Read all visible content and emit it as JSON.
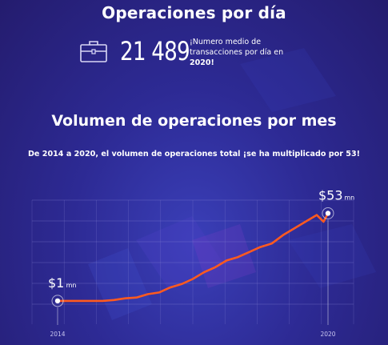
{
  "header": {
    "title": "Operaciones por día",
    "stat_value": "21 489",
    "stat_desc_line1": "¡Numero medio de",
    "stat_desc_line2": "transacciones por día en",
    "stat_desc_year": "2020!"
  },
  "section": {
    "subtitle": "Volumen de operaciones por mes",
    "caption": "De 2014 a 2020, el volumen de operaciones total ¡se ha multiplicado por 53!"
  },
  "icons": {
    "stat_icon": "briefcase-icon"
  },
  "colors": {
    "line": "#ff5a1f",
    "accent_bg": "#2d2a94",
    "text": "#ffffff"
  },
  "chart_data": {
    "type": "line",
    "title": "Volumen de operaciones por mes",
    "x_tick_labels": [
      "2014",
      "2020"
    ],
    "ylim": [
      0,
      60
    ],
    "grid": true,
    "start_marker": {
      "x": 2014.0,
      "value": 1,
      "label_value": "$1",
      "label_unit": "mn"
    },
    "end_marker": {
      "x": 2020.0,
      "value": 53,
      "label_value": "$53",
      "label_unit": "mn"
    },
    "series": [
      {
        "x": [
          2014.0,
          2014.25,
          2014.5,
          2014.75,
          2015.0,
          2015.25,
          2015.5,
          2015.75,
          2016.0,
          2016.25,
          2016.5,
          2016.75,
          2017.0,
          2017.25,
          2017.5,
          2017.75,
          2018.0,
          2018.25,
          2018.5,
          2018.75,
          2019.0,
          2019.25,
          2019.5,
          2019.75,
          2019.9,
          2020.0
        ],
        "values": [
          1,
          1,
          1,
          1,
          1,
          1.5,
          2.5,
          3,
          5,
          6,
          9,
          11,
          14,
          18,
          21,
          25,
          27,
          30,
          33,
          35,
          40,
          44,
          48,
          52,
          48,
          53
        ]
      }
    ]
  }
}
